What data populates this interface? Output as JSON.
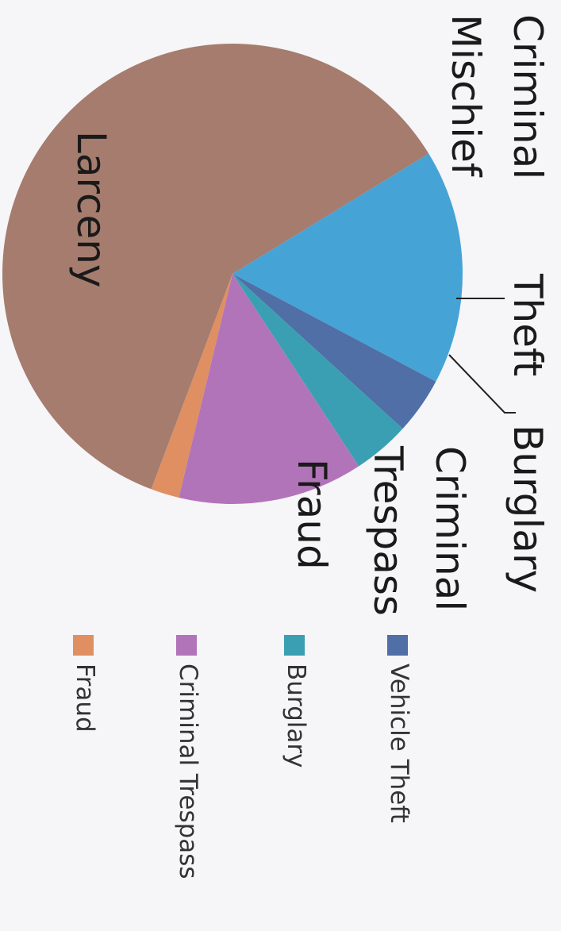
{
  "chart_data": {
    "type": "pie",
    "slices": [
      {
        "name": "Criminal Mischief",
        "value": 16.5,
        "color": "#46a3d6"
      },
      {
        "name": "Vehicle Theft",
        "value": 4.0,
        "color": "#4f6fa6"
      },
      {
        "name": "Burglary",
        "value": 4.0,
        "color": "#3a9fb3"
      },
      {
        "name": "Criminal Trespass",
        "value": 13.0,
        "color": "#b274b9"
      },
      {
        "name": "Fraud",
        "value": 2.0,
        "color": "#df8f62"
      },
      {
        "name": "Larceny",
        "value": 60.5,
        "color": "#a57c6e"
      }
    ],
    "slice_labels": {
      "criminal_mischief": [
        "Criminal",
        "Mischief"
      ],
      "theft": "Theft",
      "burglary": "Burglary",
      "criminal_trespass": [
        "Criminal",
        "Trespass"
      ],
      "fraud": "Fraud",
      "larceny": "Larceny"
    },
    "legend": [
      {
        "label": "Vehicle Theft",
        "color": "#4f6fa6"
      },
      {
        "label": "Burglary",
        "color": "#3a9fb3"
      },
      {
        "label": "Criminal Trespass",
        "color": "#b274b9"
      },
      {
        "label": "Fraud",
        "color": "#df8f62"
      }
    ],
    "legend_placement": "right",
    "orientation": "rotated 90 degrees clockwise"
  }
}
